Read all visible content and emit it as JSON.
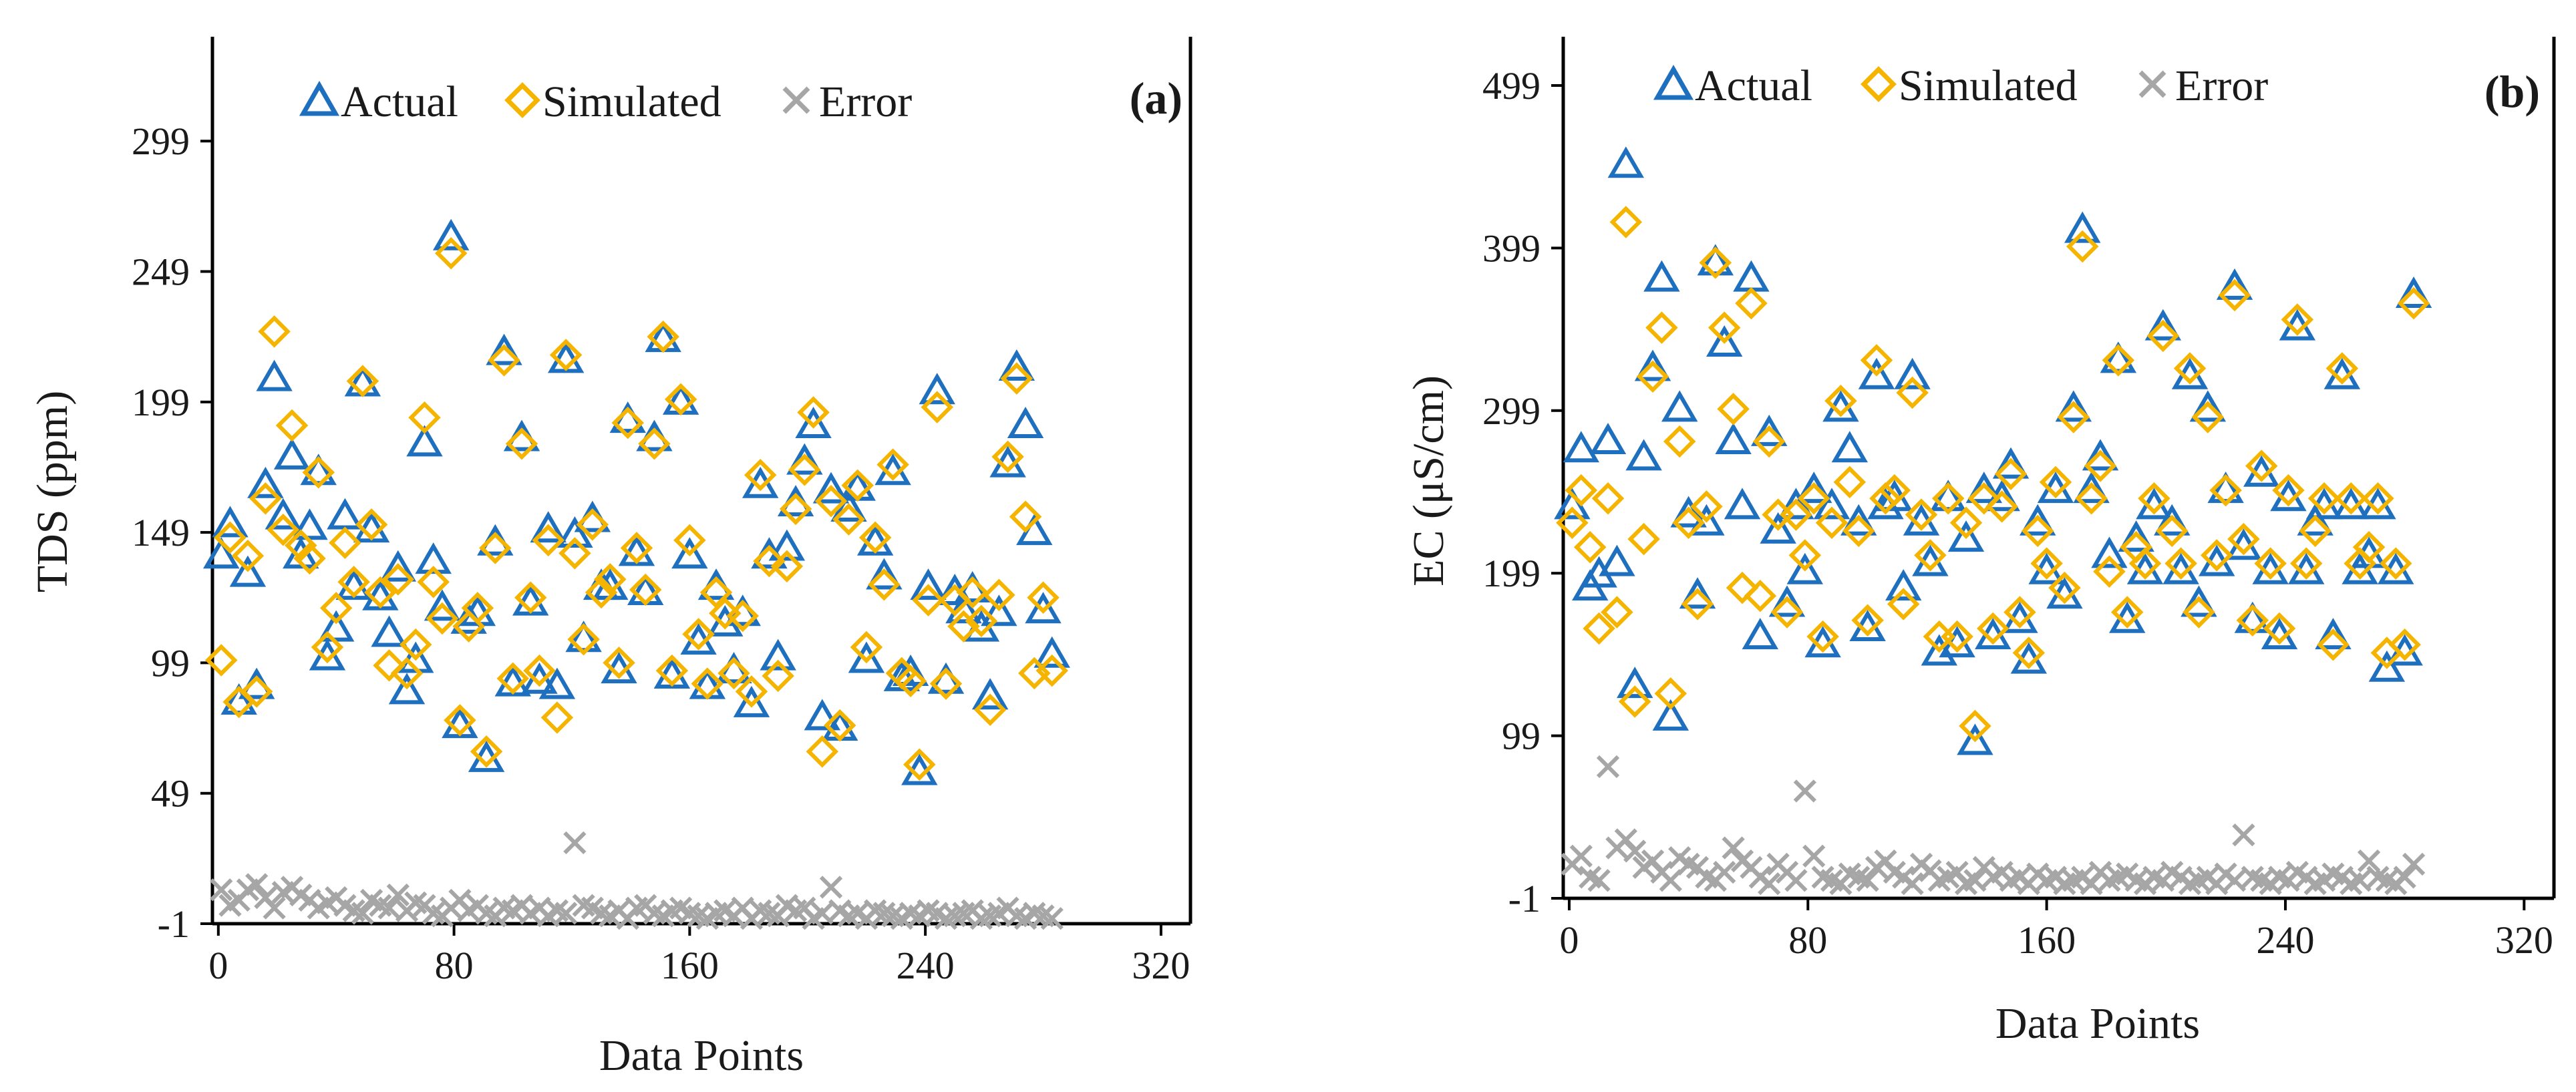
{
  "chart_data": [
    {
      "type": "scatter",
      "panel_label": "(a)",
      "xlabel": "Data Points",
      "ylabel": "TDS (ppm)",
      "xlim": [
        -2,
        330
      ],
      "ylim": [
        -1,
        339
      ],
      "xticks": [
        0,
        80,
        160,
        240,
        320
      ],
      "xtick_labels": [
        "0",
        "80",
        "160",
        "240",
        "320"
      ],
      "yticks": [
        -1,
        49,
        99,
        149,
        199,
        249,
        299
      ],
      "ytick_labels": [
        "-1",
        "49",
        "99",
        "149",
        "199",
        "249",
        "299"
      ],
      "legend": [
        "Actual",
        "Simulated",
        "Error"
      ],
      "legend_position": "top-left",
      "series": [
        {
          "name": "Actual",
          "marker": "triangle",
          "color": "#1f6fbf",
          "step": 3,
          "values": [
            140,
            152,
            84,
            133,
            90,
            167,
            208,
            155,
            178,
            140,
            151,
            172,
            101,
            112,
            155,
            128,
            206,
            150,
            124,
            110,
            135,
            88,
            100,
            183,
            138,
            120,
            262,
            75,
            115,
            118,
            62,
            145,
            218,
            91,
            185,
            122,
            92,
            150,
            90,
            215,
            148,
            108,
            154,
            128,
            128,
            96,
            192,
            141,
            126,
            185,
            223,
            94,
            199,
            140,
            107,
            90,
            128,
            114,
            96,
            118,
            83,
            167,
            140,
            101,
            143,
            160,
            176,
            190,
            78,
            165,
            74,
            158,
            166,
            100,
            145,
            132,
            172,
            93,
            95,
            57,
            128,
            203,
            92,
            126,
            119,
            127,
            112,
            86,
            118,
            175,
            212,
            190,
            149,
            119,
            102
          ]
        },
        {
          "name": "Simulated",
          "marker": "diamond",
          "color": "#f5b400",
          "step": 3,
          "values": [
            100,
            147,
            84,
            140,
            88,
            162,
            226,
            150,
            190,
            144,
            139,
            172,
            105,
            120,
            145,
            130,
            207,
            152,
            126,
            98,
            131,
            95,
            106,
            193,
            130,
            116,
            256,
            77,
            113,
            120,
            65,
            143,
            215,
            93,
            183,
            124,
            96,
            146,
            78,
            217,
            141,
            108,
            152,
            126,
            131,
            99,
            191,
            143,
            127,
            183,
            224,
            96,
            200,
            146,
            110,
            91,
            126,
            118,
            95,
            117,
            88,
            171,
            138,
            94,
            136,
            158,
            173,
            195,
            65,
            161,
            75,
            154,
            167,
            105,
            147,
            129,
            175,
            95,
            92,
            60,
            123,
            197,
            91,
            123,
            113,
            126,
            115,
            81,
            125,
            178,
            208,
            155,
            95,
            124,
            96
          ]
        },
        {
          "name": "Error",
          "marker": "x",
          "color": "#a6a6a6",
          "step": 3,
          "values": [
            12,
            6,
            8,
            12,
            14,
            9,
            5,
            11,
            13,
            10,
            8,
            5,
            7,
            9,
            6,
            4,
            3,
            8,
            6,
            5,
            10,
            4,
            7,
            6,
            3,
            2,
            5,
            8,
            4,
            6,
            3,
            2,
            5,
            4,
            6,
            3,
            5,
            2,
            4,
            3,
            30,
            6,
            5,
            3,
            2,
            4,
            1,
            5,
            6,
            3,
            2,
            4,
            5,
            3,
            2,
            1,
            3,
            4,
            2,
            5,
            1,
            4,
            3,
            2,
            6,
            4,
            5,
            1,
            3,
            13,
            4,
            2,
            3,
            1,
            4,
            3,
            2,
            1,
            3,
            2,
            4,
            3,
            1,
            2,
            3,
            4,
            1,
            2,
            3,
            5,
            2,
            1,
            3,
            2,
            1
          ]
        }
      ]
    },
    {
      "type": "scatter",
      "panel_label": "(b)",
      "xlabel": "Data Points",
      "ylabel": "EC (μS/cm)",
      "xlim": [
        -2,
        330
      ],
      "ylim": [
        -1,
        529
      ],
      "xticks": [
        0,
        80,
        160,
        240,
        320
      ],
      "xtick_labels": [
        "0",
        "80",
        "160",
        "240",
        "320"
      ],
      "yticks": [
        -1,
        99,
        199,
        299,
        399,
        499
      ],
      "ytick_labels": [
        "-1",
        "99",
        "199",
        "299",
        "399",
        "499"
      ],
      "legend": [
        "Actual",
        "Simulated",
        "Error"
      ],
      "legend_position": "top-left",
      "series": [
        {
          "name": "Actual",
          "marker": "triangle",
          "color": "#1f6fbf",
          "step": 3,
          "values": [
            240,
            275,
            190,
            198,
            280,
            205,
            450,
            130,
            270,
            325,
            380,
            110,
            300,
            235,
            185,
            230,
            390,
            340,
            280,
            240,
            380,
            160,
            285,
            225,
            180,
            240,
            200,
            250,
            155,
            240,
            300,
            275,
            230,
            165,
            320,
            240,
            245,
            190,
            320,
            230,
            205,
            150,
            245,
            155,
            220,
            95,
            250,
            160,
            245,
            265,
            170,
            145,
            230,
            200,
            250,
            185,
            300,
            410,
            250,
            270,
            210,
            330,
            170,
            220,
            200,
            240,
            350,
            230,
            200,
            320,
            180,
            300,
            205,
            250,
            375,
            215,
            170,
            260,
            200,
            160,
            245,
            350,
            200,
            230,
            240,
            160,
            320,
            240,
            200,
            210,
            240,
            140,
            200,
            150,
            370
          ]
        },
        {
          "name": "Simulated",
          "marker": "diamond",
          "color": "#f5b400",
          "step": 3,
          "values": [
            230,
            250,
            215,
            165,
            245,
            175,
            415,
            120,
            220,
            320,
            350,
            125,
            280,
            230,
            180,
            240,
            390,
            350,
            300,
            190,
            365,
            185,
            280,
            235,
            175,
            235,
            210,
            245,
            160,
            230,
            305,
            255,
            225,
            170,
            330,
            245,
            250,
            180,
            310,
            235,
            210,
            160,
            245,
            160,
            230,
            105,
            245,
            165,
            240,
            260,
            175,
            150,
            225,
            205,
            255,
            190,
            295,
            400,
            245,
            265,
            200,
            330,
            175,
            215,
            205,
            245,
            345,
            225,
            205,
            325,
            175,
            295,
            210,
            250,
            370,
            220,
            170,
            265,
            205,
            165,
            250,
            355,
            205,
            225,
            245,
            155,
            325,
            245,
            205,
            215,
            245,
            150,
            205,
            155,
            365
          ]
        },
        {
          "name": "Error",
          "marker": "x",
          "color": "#a6a6a6",
          "step": 3,
          "values": [
            20,
            25,
            12,
            10,
            80,
            30,
            35,
            28,
            18,
            22,
            15,
            10,
            24,
            20,
            18,
            12,
            10,
            15,
            30,
            22,
            18,
            12,
            8,
            20,
            15,
            10,
            65,
            25,
            12,
            10,
            8,
            14,
            12,
            10,
            18,
            22,
            15,
            12,
            8,
            20,
            16,
            10,
            12,
            15,
            8,
            10,
            18,
            12,
            15,
            10,
            12,
            8,
            14,
            10,
            12,
            8,
            10,
            12,
            8,
            15,
            10,
            12,
            14,
            10,
            8,
            12,
            10,
            15,
            12,
            8,
            10,
            12,
            8,
            14,
            10,
            38,
            12,
            10,
            8,
            12,
            10,
            15,
            12,
            8,
            10,
            14,
            12,
            8,
            10,
            22,
            12,
            10,
            8,
            12,
            20
          ]
        }
      ]
    }
  ]
}
